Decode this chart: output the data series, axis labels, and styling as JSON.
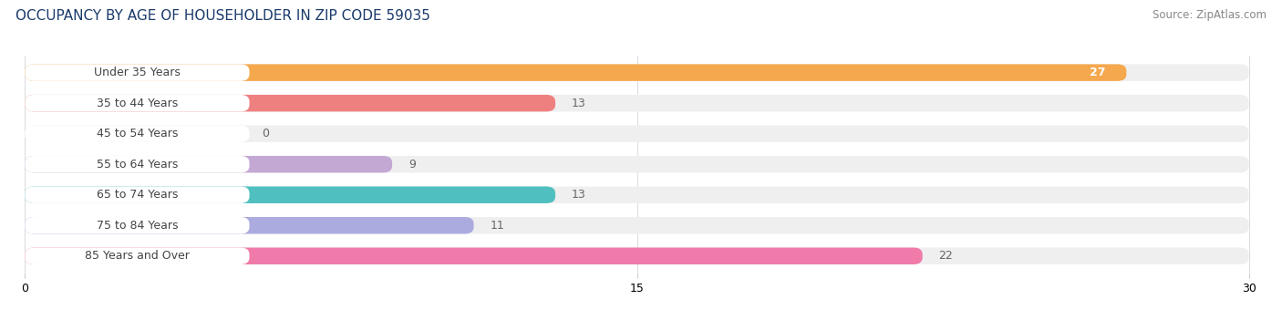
{
  "title": "OCCUPANCY BY AGE OF HOUSEHOLDER IN ZIP CODE 59035",
  "source": "Source: ZipAtlas.com",
  "categories": [
    "Under 35 Years",
    "35 to 44 Years",
    "45 to 54 Years",
    "55 to 64 Years",
    "65 to 74 Years",
    "75 to 84 Years",
    "85 Years and Over"
  ],
  "values": [
    27,
    13,
    0,
    9,
    13,
    11,
    22
  ],
  "bar_colors": [
    "#F5A84D",
    "#EF8080",
    "#A8C4EE",
    "#C4A8D4",
    "#50BFBF",
    "#ABABDF",
    "#F07AAA"
  ],
  "bar_bg_color": "#EFEFEF",
  "label_bg_color": "#FFFFFF",
  "xlim_max": 30,
  "xticks": [
    0,
    15,
    30
  ],
  "title_fontsize": 11,
  "source_fontsize": 8.5,
  "label_fontsize": 9,
  "value_fontsize": 9,
  "background_color": "#FFFFFF",
  "grid_color": "#DDDDDD",
  "label_text_color": "#444444",
  "value_color_inside": "#FFFFFF",
  "value_color_outside": "#666666"
}
